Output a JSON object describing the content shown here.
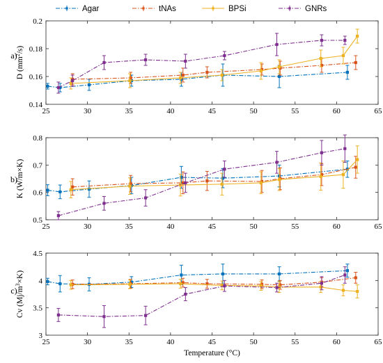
{
  "legend": {
    "items": [
      {
        "label": "Agar",
        "color": "#0072BD"
      },
      {
        "label": "tNAs",
        "color": "#D95319"
      },
      {
        "label": "BPSi",
        "color": "#EDB120"
      },
      {
        "label": "GNRs",
        "color": "#7E2F8E"
      }
    ],
    "location": "top",
    "line_styles": {
      "Agar": "dash-dot",
      "tNAs": "dash-dot",
      "BPSi": "solid",
      "GNRs": "dash-dot"
    }
  },
  "chart_data": [
    {
      "type": "line",
      "panel": "a)",
      "xlabel": "",
      "ylabel": "D (mm²/s)",
      "ylabel_parts": {
        "pre": "D (mm",
        "sup": "2",
        "post": "/s)"
      },
      "xlim": [
        25,
        65
      ],
      "ylim": [
        0.14,
        0.2
      ],
      "xticks": [
        "25",
        "30",
        "35",
        "40",
        "45",
        "50",
        "55",
        "60",
        "65"
      ],
      "yticks": [
        "0.14",
        "0.16",
        "0.18",
        "0.2"
      ],
      "ytick_values": [
        0.14,
        0.16,
        0.18,
        0.2
      ],
      "grid": false,
      "series": [
        {
          "name": "Agar",
          "x": [
            25.2,
            26.7,
            30.2,
            35.3,
            41.3,
            46.3,
            53.1,
            61.3
          ],
          "y": [
            0.153,
            0.152,
            0.154,
            0.157,
            0.158,
            0.161,
            0.16,
            0.163
          ],
          "err": [
            0.002,
            0.003,
            0.004,
            0.004,
            0.005,
            0.008,
            0.008,
            0.005
          ]
        },
        {
          "name": "tNAs",
          "x": [
            28.2,
            35.2,
            41.5,
            44.4,
            51.0,
            53.2,
            58.2,
            62.3
          ],
          "y": [
            0.158,
            0.159,
            0.161,
            0.163,
            0.165,
            0.166,
            0.168,
            0.17
          ],
          "err": [
            0.004,
            0.004,
            0.005,
            0.004,
            0.004,
            0.005,
            0.005,
            0.005
          ]
        },
        {
          "name": "BPSi",
          "x": [
            28.0,
            35.1,
            41.2,
            46.2,
            50.9,
            53.1,
            58.1,
            60.8,
            62.5
          ],
          "y": [
            0.155,
            0.157,
            0.159,
            0.161,
            0.164,
            0.167,
            0.173,
            0.175,
            0.189
          ],
          "err": [
            0.004,
            0.005,
            0.004,
            0.004,
            0.006,
            0.005,
            0.006,
            0.006,
            0.005
          ]
        },
        {
          "name": "GNRs",
          "x": [
            26.5,
            28.2,
            32.0,
            37.0,
            41.8,
            46.5,
            52.8,
            58.2,
            61.0
          ],
          "y": [
            0.152,
            0.157,
            0.17,
            0.172,
            0.171,
            0.175,
            0.183,
            0.186,
            0.186
          ],
          "err": [
            0.004,
            0.004,
            0.005,
            0.004,
            0.005,
            0.003,
            0.008,
            0.004,
            0.003
          ]
        }
      ]
    },
    {
      "type": "line",
      "panel": "b)",
      "xlabel": "",
      "ylabel": "K (W/m×K)",
      "ylabel_parts": {
        "pre": "K (W/m×K)",
        "sup": "",
        "post": ""
      },
      "xlim": [
        25,
        65
      ],
      "ylim": [
        0.5,
        0.8
      ],
      "xticks": [
        "25",
        "30",
        "35",
        "40",
        "45",
        "50",
        "55",
        "60",
        "65"
      ],
      "yticks": [
        "0.5",
        "0.6",
        "0.7",
        "0.8"
      ],
      "ytick_values": [
        0.5,
        0.6,
        0.7,
        0.8
      ],
      "grid": false,
      "series": [
        {
          "name": "Agar",
          "x": [
            25.2,
            26.7,
            30.2,
            35.3,
            41.3,
            46.3,
            53.1,
            61.3
          ],
          "y": [
            0.608,
            0.602,
            0.612,
            0.625,
            0.655,
            0.652,
            0.66,
            0.685
          ],
          "err": [
            0.02,
            0.025,
            0.03,
            0.03,
            0.04,
            0.035,
            0.04,
            0.03
          ]
        },
        {
          "name": "tNAs",
          "x": [
            28.2,
            35.2,
            41.5,
            44.4,
            51.0,
            53.2,
            58.2,
            62.3
          ],
          "y": [
            0.62,
            0.632,
            0.635,
            0.642,
            0.64,
            0.65,
            0.665,
            0.692
          ],
          "err": [
            0.03,
            0.03,
            0.04,
            0.035,
            0.04,
            0.04,
            0.04,
            0.04
          ]
        },
        {
          "name": "BPSi",
          "x": [
            28.0,
            35.1,
            41.2,
            46.2,
            50.9,
            53.1,
            58.1,
            60.8,
            62.5
          ],
          "y": [
            0.61,
            0.623,
            0.627,
            0.63,
            0.635,
            0.647,
            0.658,
            0.665,
            0.72
          ],
          "err": [
            0.03,
            0.03,
            0.04,
            0.04,
            0.04,
            0.04,
            0.05,
            0.05,
            0.05
          ]
        },
        {
          "name": "GNRs",
          "x": [
            26.5,
            32.0,
            37.0,
            41.8,
            46.5,
            52.8,
            58.2,
            61.0
          ],
          "y": [
            0.515,
            0.56,
            0.58,
            0.635,
            0.685,
            0.71,
            0.745,
            0.76
          ],
          "err": [
            0.015,
            0.025,
            0.03,
            0.035,
            0.03,
            0.04,
            0.045,
            0.05
          ]
        }
      ]
    },
    {
      "type": "line",
      "panel": "c)",
      "xlabel": "Temperature (°C)",
      "ylabel": "Cv (Mj/m³×K)",
      "ylabel_parts": {
        "pre": "Cv (Mj/m",
        "sup": "3",
        "post": "×K)"
      },
      "xlim": [
        25,
        65
      ],
      "ylim": [
        3,
        4.5
      ],
      "xticks": [
        "25",
        "30",
        "35",
        "40",
        "45",
        "50",
        "55",
        "60",
        "65"
      ],
      "yticks": [
        "3",
        "3.5",
        "4",
        "4.5"
      ],
      "ytick_values": [
        3,
        3.5,
        4,
        4.5
      ],
      "grid": false,
      "series": [
        {
          "name": "Agar",
          "x": [
            25.2,
            26.7,
            30.2,
            35.3,
            41.3,
            46.3,
            53.1,
            61.3
          ],
          "y": [
            3.98,
            3.94,
            3.93,
            3.97,
            4.1,
            4.12,
            4.12,
            4.18
          ],
          "err": [
            0.06,
            0.15,
            0.12,
            0.1,
            0.18,
            0.18,
            0.13,
            0.12
          ]
        },
        {
          "name": "tNAs",
          "x": [
            28.2,
            35.2,
            41.5,
            44.4,
            51.0,
            53.2,
            58.2,
            62.3
          ],
          "y": [
            3.93,
            3.94,
            3.96,
            3.94,
            3.93,
            3.92,
            3.97,
            4.05
          ],
          "err": [
            0.08,
            0.08,
            0.08,
            0.08,
            0.08,
            0.08,
            0.08,
            0.1
          ]
        },
        {
          "name": "BPSi",
          "x": [
            28.0,
            35.1,
            41.2,
            46.2,
            50.9,
            53.1,
            58.1,
            60.8,
            62.5
          ],
          "y": [
            3.92,
            3.93,
            3.94,
            3.91,
            3.9,
            3.88,
            3.88,
            3.82,
            3.8
          ],
          "err": [
            0.08,
            0.08,
            0.08,
            0.08,
            0.08,
            0.1,
            0.1,
            0.1,
            0.12
          ]
        },
        {
          "name": "GNRs",
          "x": [
            26.5,
            32.0,
            37.0,
            41.8,
            46.5,
            52.8,
            58.2,
            61.0
          ],
          "y": [
            3.37,
            3.34,
            3.36,
            3.75,
            3.9,
            3.87,
            3.95,
            4.1
          ],
          "err": [
            0.12,
            0.2,
            0.17,
            0.12,
            0.1,
            0.08,
            0.12,
            0.15
          ]
        }
      ]
    }
  ]
}
